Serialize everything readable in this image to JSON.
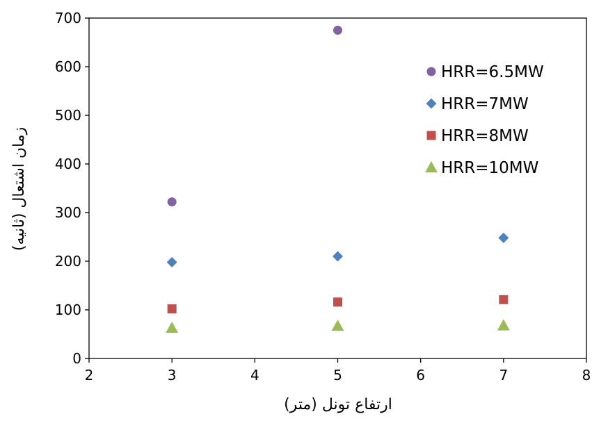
{
  "chart_data": {
    "type": "scatter",
    "xlabel": "ارتفاع تونل (متر)",
    "ylabel": "زمان اشتعال (ثانیه)",
    "xlim": [
      2,
      8
    ],
    "ylim": [
      0,
      700
    ],
    "xticks": [
      2,
      3,
      4,
      5,
      6,
      7,
      8
    ],
    "yticks": [
      0,
      100,
      200,
      300,
      400,
      500,
      600,
      700
    ],
    "grid": false,
    "legend_position": "top-right",
    "series": [
      {
        "name": "HRR=6.5MW",
        "marker": "circle",
        "color": "#8064A2",
        "points": [
          {
            "x": 3,
            "y": 322
          },
          {
            "x": 5,
            "y": 675
          }
        ]
      },
      {
        "name": "HRR=7MW",
        "marker": "diamond",
        "color": "#4F81BD",
        "points": [
          {
            "x": 3,
            "y": 198
          },
          {
            "x": 5,
            "y": 210
          },
          {
            "x": 7,
            "y": 248
          }
        ]
      },
      {
        "name": "HRR=8MW",
        "marker": "square",
        "color": "#C0504D",
        "points": [
          {
            "x": 3,
            "y": 102
          },
          {
            "x": 5,
            "y": 116
          },
          {
            "x": 7,
            "y": 121
          }
        ]
      },
      {
        "name": "HRR=10MW",
        "marker": "triangle",
        "color": "#9BBB59",
        "points": [
          {
            "x": 3,
            "y": 63
          },
          {
            "x": 5,
            "y": 67
          },
          {
            "x": 7,
            "y": 68
          }
        ]
      }
    ]
  }
}
